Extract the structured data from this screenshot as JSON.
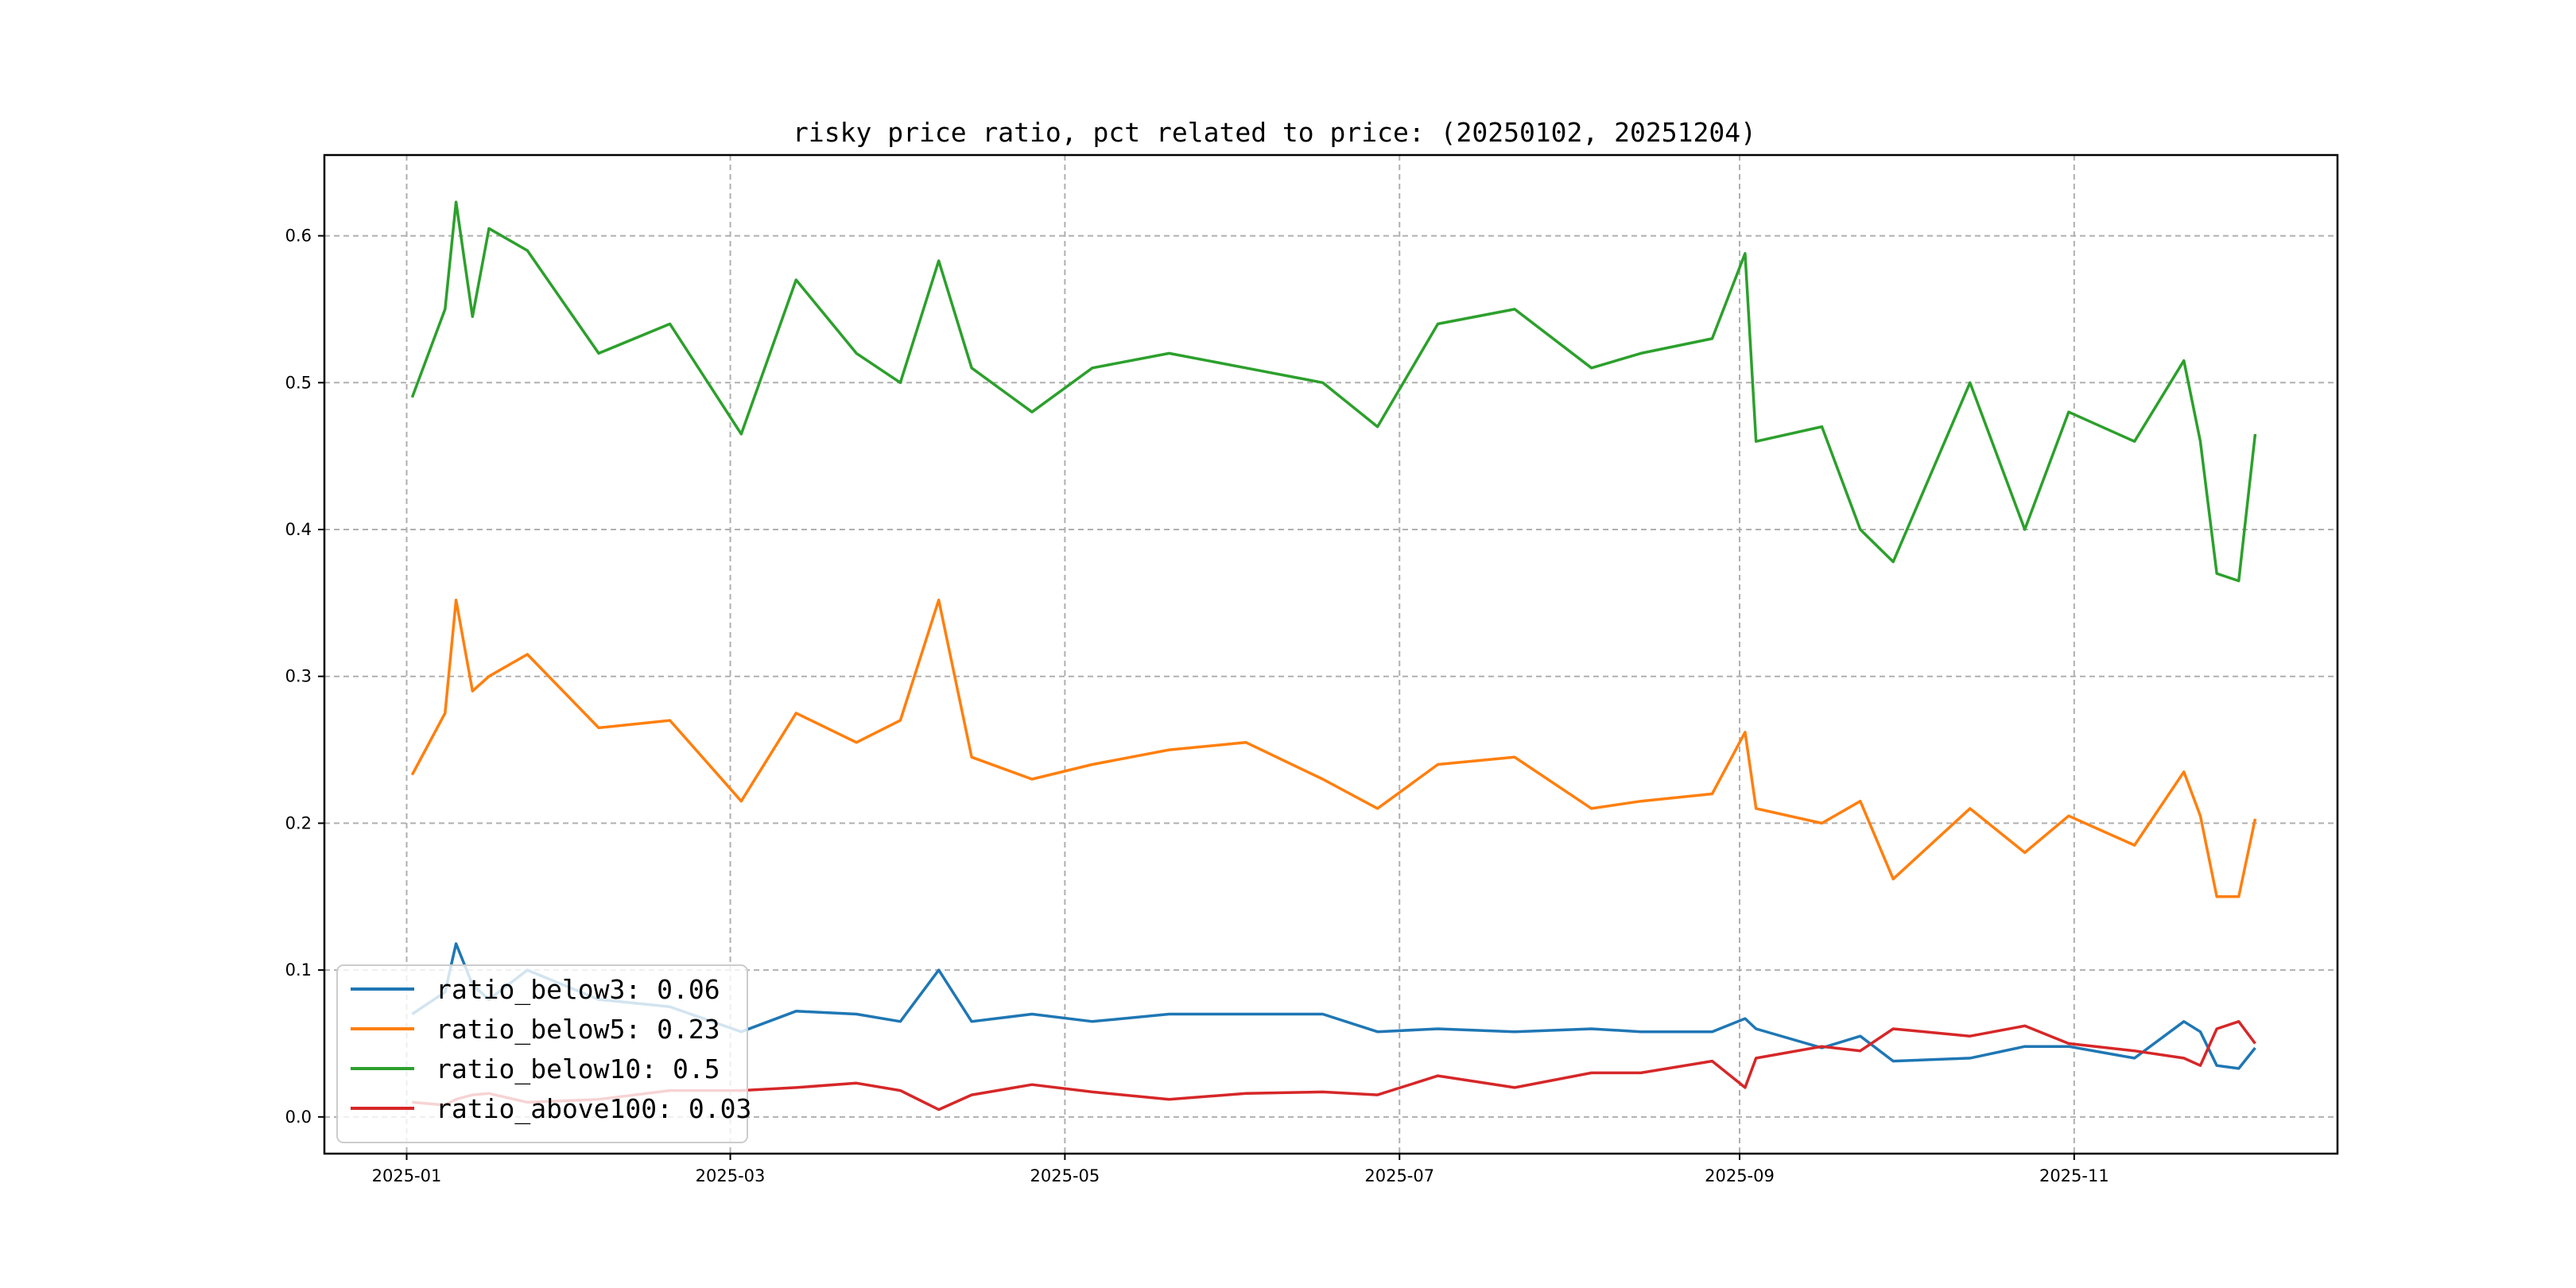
{
  "chart_data": {
    "type": "line",
    "title": "risky price ratio, pct related to price: (20250102, 20251204)",
    "xlabel": "",
    "ylabel": "",
    "xlim": [
      "2024-12-17",
      "2025-12-19"
    ],
    "ylim": [
      -0.025,
      0.655
    ],
    "x_ticks": [
      "2025-01-01",
      "2025-03-01",
      "2025-05-01",
      "2025-07-01",
      "2025-09-01",
      "2025-11-01"
    ],
    "x_tick_labels": [
      "2025-01",
      "2025-03",
      "2025-05",
      "2025-07",
      "2025-09",
      "2025-11"
    ],
    "y_ticks": [
      0.0,
      0.1,
      0.2,
      0.3,
      0.4,
      0.5,
      0.6
    ],
    "y_tick_labels": [
      "0.0",
      "0.1",
      "0.2",
      "0.3",
      "0.4",
      "0.5",
      "0.6"
    ],
    "grid": true,
    "legend_position": "lower-left",
    "x": [
      "2025-01-02",
      "2025-01-08",
      "2025-01-10",
      "2025-01-13",
      "2025-01-16",
      "2025-01-23",
      "2025-02-05",
      "2025-02-18",
      "2025-03-03",
      "2025-03-13",
      "2025-03-24",
      "2025-04-01",
      "2025-04-08",
      "2025-04-14",
      "2025-04-25",
      "2025-05-06",
      "2025-05-20",
      "2025-06-03",
      "2025-06-17",
      "2025-06-27",
      "2025-07-08",
      "2025-07-22",
      "2025-08-05",
      "2025-08-14",
      "2025-08-27",
      "2025-09-02",
      "2025-09-04",
      "2025-09-16",
      "2025-09-23",
      "2025-09-29",
      "2025-10-13",
      "2025-10-23",
      "2025-10-31",
      "2025-11-12",
      "2025-11-21",
      "2025-11-24",
      "2025-11-27",
      "2025-12-01",
      "2025-12-04"
    ],
    "series": [
      {
        "name": "ratio_below3: 0.06",
        "color": "#1f77b4",
        "values": [
          0.07,
          0.085,
          0.118,
          0.09,
          0.08,
          0.1,
          0.08,
          0.075,
          0.058,
          0.072,
          0.07,
          0.065,
          0.1,
          0.065,
          0.07,
          0.065,
          0.07,
          0.07,
          0.07,
          0.058,
          0.06,
          0.058,
          0.06,
          0.058,
          0.058,
          0.067,
          0.06,
          0.047,
          0.055,
          0.038,
          0.04,
          0.048,
          0.048,
          0.04,
          0.065,
          0.058,
          0.035,
          0.033,
          0.047
        ]
      },
      {
        "name": "ratio_below5: 0.23",
        "color": "#ff7f0e",
        "values": [
          0.233,
          0.275,
          0.352,
          0.29,
          0.3,
          0.315,
          0.265,
          0.27,
          0.215,
          0.275,
          0.255,
          0.27,
          0.352,
          0.245,
          0.23,
          0.24,
          0.25,
          0.255,
          0.23,
          0.21,
          0.24,
          0.245,
          0.21,
          0.215,
          0.22,
          0.262,
          0.21,
          0.2,
          0.215,
          0.162,
          0.21,
          0.18,
          0.205,
          0.185,
          0.235,
          0.205,
          0.15,
          0.15,
          0.203
        ]
      },
      {
        "name": "ratio_below10: 0.5",
        "color": "#2ca02c",
        "values": [
          0.49,
          0.55,
          0.623,
          0.545,
          0.605,
          0.59,
          0.52,
          0.54,
          0.465,
          0.57,
          0.52,
          0.5,
          0.583,
          0.51,
          0.48,
          0.51,
          0.52,
          0.51,
          0.5,
          0.47,
          0.54,
          0.55,
          0.51,
          0.52,
          0.53,
          0.588,
          0.46,
          0.47,
          0.4,
          0.378,
          0.5,
          0.4,
          0.48,
          0.46,
          0.515,
          0.46,
          0.37,
          0.365,
          0.465
        ]
      },
      {
        "name": "ratio_above100: 0.03",
        "color": "#d62728",
        "values": [
          0.01,
          0.008,
          0.012,
          0.015,
          0.016,
          0.01,
          0.012,
          0.018,
          0.018,
          0.02,
          0.023,
          0.018,
          0.005,
          0.015,
          0.022,
          0.017,
          0.012,
          0.016,
          0.017,
          0.015,
          0.028,
          0.02,
          0.03,
          0.03,
          0.038,
          0.02,
          0.04,
          0.048,
          0.045,
          0.06,
          0.055,
          0.062,
          0.05,
          0.045,
          0.04,
          0.035,
          0.06,
          0.065,
          0.05
        ]
      }
    ]
  }
}
